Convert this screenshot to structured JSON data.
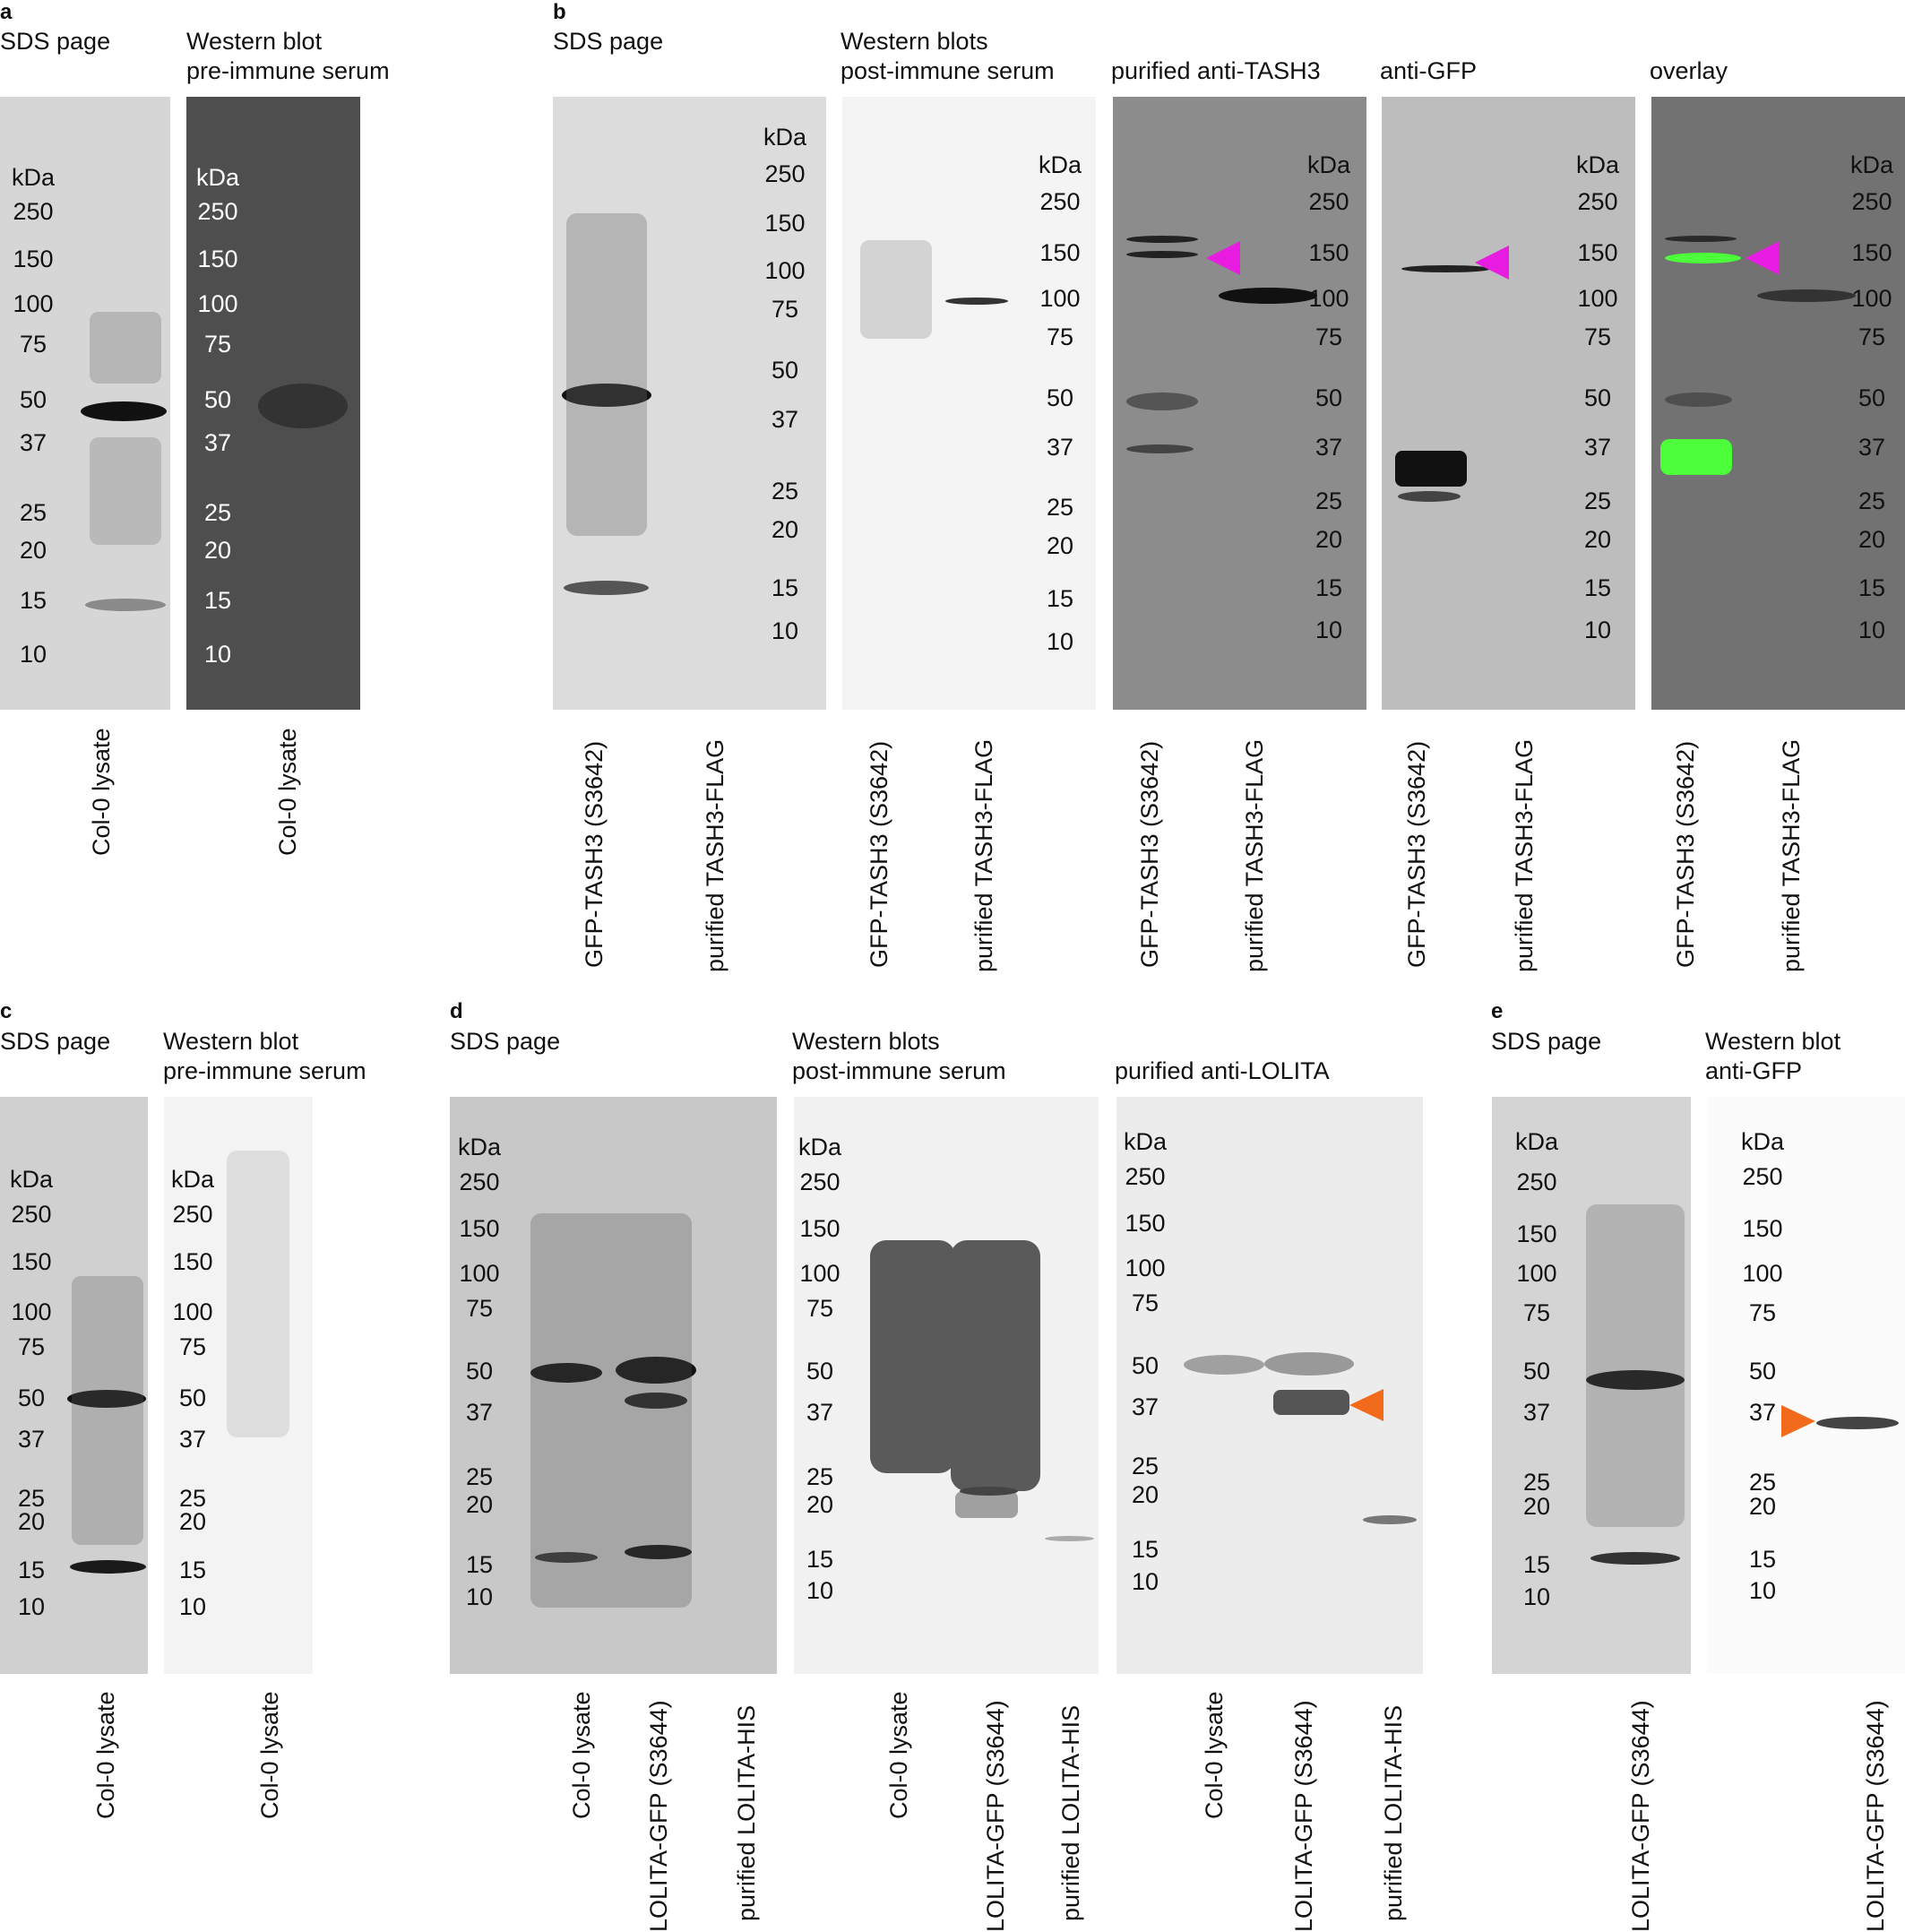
{
  "panels": {
    "a": {
      "letter": "a",
      "sds_title": "SDS page",
      "wb_title": "Western blot\npre-immune serum",
      "kda": "kDa",
      "markers": [
        "250",
        "150",
        "100",
        "75",
        "50",
        "37",
        "25",
        "20",
        "15",
        "10"
      ],
      "lanes_sds": [
        "Col-0 lysate"
      ],
      "lanes_wb": [
        "Col-0 lysate"
      ]
    },
    "b": {
      "letter": "b",
      "sds_title": "SDS page",
      "wb_title": "Western blots\npost-immune serum",
      "anti_tash3_title": "purified anti-TASH3",
      "anti_gfp_title": "anti-GFP",
      "overlay_title": "overlay",
      "kda": "kDa",
      "markers": [
        "250",
        "150",
        "100",
        "75",
        "50",
        "37",
        "25",
        "20",
        "15",
        "10"
      ],
      "lanes": [
        "GFP-TASH3 (S3642)",
        "purified TASH3-FLAG"
      ]
    },
    "c": {
      "letter": "c",
      "sds_title": "SDS page",
      "wb_title": "Western blot\npre-immune serum",
      "kda": "kDa",
      "markers": [
        "250",
        "150",
        "100",
        "75",
        "50",
        "37",
        "25",
        "20",
        "15",
        "10"
      ],
      "lanes_sds": [
        "Col-0 lysate"
      ],
      "lanes_wb": [
        "Col-0 lysate"
      ]
    },
    "d": {
      "letter": "d",
      "sds_title": "SDS page",
      "wb_title": "Western blots\npost-immune serum",
      "anti_lolita_title": "purified anti-LOLITA",
      "kda": "kDa",
      "markers": [
        "250",
        "150",
        "100",
        "75",
        "50",
        "37",
        "25",
        "20",
        "15",
        "10"
      ],
      "lanes": [
        "Col-0 lysate",
        "LOLITA-GFP (S3644)",
        "purified LOLITA-HIS"
      ]
    },
    "e": {
      "letter": "e",
      "sds_title": "SDS page",
      "wb_title": "Western blot\nanti-GFP",
      "kda": "kDa",
      "markers": [
        "250",
        "150",
        "100",
        "75",
        "50",
        "37",
        "25",
        "20",
        "15",
        "10"
      ],
      "lanes": [
        "LOLITA-GFP (S3644)"
      ]
    }
  },
  "colors": {
    "arrow_magenta": "#e81ce0",
    "arrow_orange": "#f26b1d",
    "gfp_green": "#4dff3a"
  }
}
